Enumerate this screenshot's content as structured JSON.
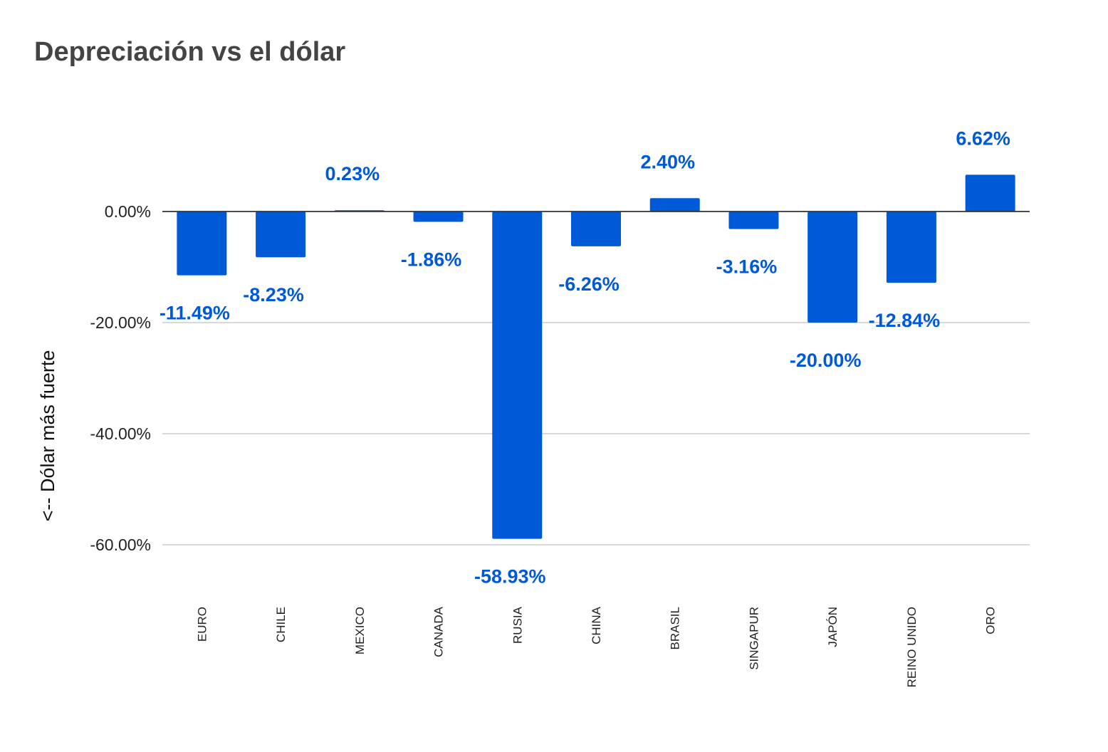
{
  "chart_data": {
    "type": "bar",
    "title": "Depreciación vs el dólar",
    "xlabel": "",
    "ylabel": "<-- Dólar más fuerte",
    "categories": [
      "EURO",
      "CHILE",
      "MEXICO",
      "CANADA",
      "RUSIA",
      "CHINA",
      "BRASIL",
      "SINGAPUR",
      "JAPÓN",
      "REINO UNIDO",
      "ORO"
    ],
    "values": [
      -11.49,
      -8.23,
      0.23,
      -1.86,
      -58.93,
      -6.26,
      2.4,
      -3.16,
      -20.0,
      -12.84,
      6.62
    ],
    "data_labels": [
      "-11.49%",
      "-8.23%",
      "0.23%",
      "-1.86%",
      "-58.93%",
      "-6.26%",
      "2.40%",
      "-3.16%",
      "-20.00%",
      "-12.84%",
      "6.62%"
    ],
    "yticks": [
      0,
      -20,
      -40,
      -60
    ],
    "ytick_labels": [
      "0.00%",
      "-20.00%",
      "-40.00%",
      "-60.00%"
    ],
    "ylim": [
      -70,
      12
    ],
    "grid": true,
    "legend": "none",
    "bar_color": "#0059d6",
    "label_color": "#0059d6"
  }
}
